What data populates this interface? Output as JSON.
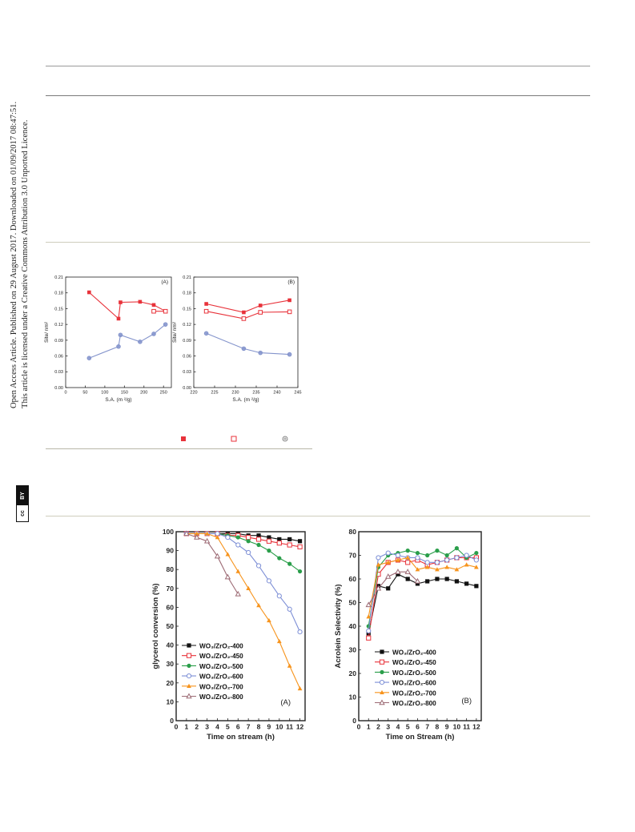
{
  "sidebar": {
    "license_badge": {
      "cc": "cc",
      "by": "BY"
    },
    "line1": "Open Access Article. Published on 29 August 2017. Downloaded on 01/09/2017 08:47:51.",
    "line2": "This article is licensed under a Creative Commons Attribution 3.0 Unported Licence."
  },
  "figure_legend_small": {
    "marker_icons": [
      "filled-square-icon",
      "open-square-icon",
      "circle-plus-icon"
    ]
  },
  "colors": {
    "red": "#e8323a",
    "blue": "#8494cc",
    "black": "#111111",
    "green": "#2a9e4a",
    "orange": "#f7941d",
    "mauve": "#9c6a74",
    "blue_open": "#7d8fd6"
  },
  "chart_data": [
    {
      "type": "line",
      "panel_label": "(A)",
      "xlabel": "S.A. (m ²/g)",
      "ylabel": "Site/ nm²",
      "xlim": [
        0,
        270
      ],
      "ylim": [
        0,
        0.21
      ],
      "xticks": [
        0,
        50,
        100,
        150,
        200,
        250
      ],
      "yticks": [
        0.0,
        0.03,
        0.06,
        0.09,
        0.12,
        0.15,
        0.18,
        0.21
      ],
      "ytick_labels": [
        "0.00",
        "0.03",
        "0.06",
        "0.09",
        "0.12",
        "0.15",
        "0.18",
        "0.21"
      ],
      "series": [
        {
          "style": "filled-square",
          "color": "#e8323a",
          "x": [
            60,
            135,
            140,
            190,
            225,
            255
          ],
          "y": [
            0.181,
            0.131,
            0.162,
            0.163,
            0.157,
            0.145
          ]
        },
        {
          "style": "open-square",
          "color": "#e8323a",
          "x": [
            225,
            255
          ],
          "y": [
            0.145,
            0.145
          ]
        },
        {
          "style": "circle",
          "color": "#8494cc",
          "x": [
            60,
            135,
            140,
            190,
            225,
            255
          ],
          "y": [
            0.056,
            0.078,
            0.1,
            0.087,
            0.102,
            0.12
          ]
        }
      ]
    },
    {
      "type": "line",
      "panel_label": "(B)",
      "xlabel": "S.A. (m ²/g)",
      "ylabel": "Site/ nm²",
      "xlim": [
        220,
        245
      ],
      "ylim": [
        0,
        0.21
      ],
      "xticks": [
        220,
        225,
        230,
        235,
        240,
        245
      ],
      "yticks": [
        0.0,
        0.03,
        0.06,
        0.09,
        0.12,
        0.15,
        0.18,
        0.21
      ],
      "ytick_labels": [
        "0.00",
        "0.03",
        "0.06",
        "0.09",
        "0.12",
        "0.15",
        "0.18",
        "0.21"
      ],
      "series": [
        {
          "style": "filled-square",
          "color": "#e8323a",
          "x": [
            223,
            232,
            236,
            243
          ],
          "y": [
            0.159,
            0.143,
            0.156,
            0.166
          ]
        },
        {
          "style": "open-square",
          "color": "#e8323a",
          "x": [
            223,
            232,
            236,
            243
          ],
          "y": [
            0.145,
            0.131,
            0.143,
            0.144
          ]
        },
        {
          "style": "circle",
          "color": "#8494cc",
          "x": [
            223,
            232,
            236,
            243
          ],
          "y": [
            0.103,
            0.074,
            0.066,
            0.063
          ]
        }
      ]
    },
    {
      "type": "line",
      "panel_label": "(A)",
      "xlabel": "Time on stream (h)",
      "ylabel": "glycerol conversion (%)",
      "xlim": [
        0,
        12.5
      ],
      "ylim": [
        0,
        100
      ],
      "xticks": [
        0,
        1,
        2,
        3,
        4,
        5,
        6,
        7,
        8,
        9,
        10,
        11,
        12
      ],
      "yticks": [
        0,
        10,
        20,
        30,
        40,
        50,
        60,
        70,
        80,
        90,
        100
      ],
      "legend_position": "left",
      "series": [
        {
          "name": "WO₃/ZrO₂-400",
          "marker": "filled-square",
          "color": "#111111",
          "x": [
            1,
            2,
            3,
            4,
            5,
            6,
            7,
            8,
            9,
            10,
            11,
            12
          ],
          "y": [
            99,
            99,
            99,
            99,
            99,
            99,
            98,
            98,
            97,
            96,
            96,
            95
          ]
        },
        {
          "name": "WO₃/ZrO₂-450",
          "marker": "open-square",
          "color": "#e8323a",
          "x": [
            1,
            2,
            3,
            4,
            5,
            6,
            7,
            8,
            9,
            10,
            11,
            12
          ],
          "y": [
            99,
            99,
            99,
            99,
            98,
            98,
            97,
            96,
            95,
            94,
            93,
            92
          ]
        },
        {
          "name": "WO₃/ZrO₂-500",
          "marker": "filled-circle",
          "color": "#2a9e4a",
          "x": [
            1,
            2,
            3,
            4,
            5,
            6,
            7,
            8,
            9,
            10,
            11,
            12
          ],
          "y": [
            99,
            99,
            99,
            99,
            98,
            97,
            95,
            93,
            90,
            86,
            83,
            79
          ]
        },
        {
          "name": "WO₃/ZrO₂-600",
          "marker": "open-circle",
          "color": "#7d8fd6",
          "x": [
            1,
            2,
            3,
            4,
            5,
            6,
            7,
            8,
            9,
            10,
            11,
            12
          ],
          "y": [
            99,
            99,
            99,
            99,
            97,
            93,
            89,
            82,
            74,
            66,
            59,
            47
          ]
        },
        {
          "name": "WO₃/ZrO₂-700",
          "marker": "filled-triangle",
          "color": "#f7941d",
          "x": [
            1,
            2,
            3,
            4,
            5,
            6,
            7,
            8,
            9,
            10,
            11,
            12
          ],
          "y": [
            99,
            99,
            99,
            97,
            88,
            79,
            70,
            61,
            53,
            42,
            29,
            17
          ]
        },
        {
          "name": "WO₃/ZrO₂-800",
          "marker": "open-triangle",
          "color": "#9c6a74",
          "x": [
            1,
            2,
            3,
            4,
            5,
            6
          ],
          "y": [
            99,
            97,
            95,
            87,
            76,
            67
          ]
        }
      ]
    },
    {
      "type": "line",
      "panel_label": "(B)",
      "xlabel": "Time on Stream (h)",
      "ylabel": "Acrolein Selectivity (%)",
      "xlim": [
        0,
        12.5
      ],
      "ylim": [
        0,
        80
      ],
      "xticks": [
        0,
        1,
        2,
        3,
        4,
        5,
        6,
        7,
        8,
        9,
        10,
        11,
        12
      ],
      "yticks": [
        0,
        10,
        20,
        30,
        40,
        50,
        60,
        70,
        80
      ],
      "legend_position": "bottom-left",
      "series": [
        {
          "name": "WO₃/ZrO₂-400",
          "marker": "filled-square",
          "color": "#111111",
          "x": [
            1,
            2,
            3,
            4,
            5,
            6,
            7,
            8,
            9,
            10,
            11,
            12
          ],
          "y": [
            37,
            57,
            56,
            62,
            60,
            58,
            59,
            60,
            60,
            59,
            58,
            57
          ]
        },
        {
          "name": "WO₃/ZrO₂-450",
          "marker": "open-square",
          "color": "#e8323a",
          "x": [
            1,
            2,
            3,
            4,
            5,
            6,
            7,
            8,
            9,
            10,
            11,
            12
          ],
          "y": [
            35,
            62,
            67,
            68,
            67,
            68,
            66,
            67,
            68,
            69,
            69,
            69
          ]
        },
        {
          "name": "WO₃/ZrO₂-500",
          "marker": "filled-circle",
          "color": "#2a9e4a",
          "x": [
            1,
            2,
            3,
            4,
            5,
            6,
            7,
            8,
            9,
            10,
            11,
            12
          ],
          "y": [
            40,
            65,
            70,
            71,
            72,
            71,
            70,
            72,
            70,
            73,
            69,
            71
          ]
        },
        {
          "name": "WO₃/ZrO₂-600",
          "marker": "open-circle",
          "color": "#7d8fd6",
          "x": [
            1,
            2,
            3,
            4,
            5,
            6,
            7,
            8,
            9,
            10,
            11,
            12
          ],
          "y": [
            38,
            69,
            71,
            70,
            69,
            69,
            67,
            67,
            68,
            69,
            70,
            68
          ]
        },
        {
          "name": "WO₃/ZrO₂-700",
          "marker": "filled-triangle",
          "color": "#f7941d",
          "x": [
            1,
            2,
            3,
            4,
            5,
            6,
            7,
            8,
            9,
            10,
            11,
            12
          ],
          "y": [
            44,
            66,
            67,
            68,
            69,
            64,
            65,
            64,
            65,
            64,
            66,
            65
          ]
        },
        {
          "name": "WO₃/ZrO₂-800",
          "marker": "open-triangle",
          "color": "#9c6a74",
          "x": [
            1,
            2,
            3,
            4,
            5,
            6
          ],
          "y": [
            49,
            56,
            61,
            63,
            63,
            59
          ]
        }
      ]
    }
  ]
}
